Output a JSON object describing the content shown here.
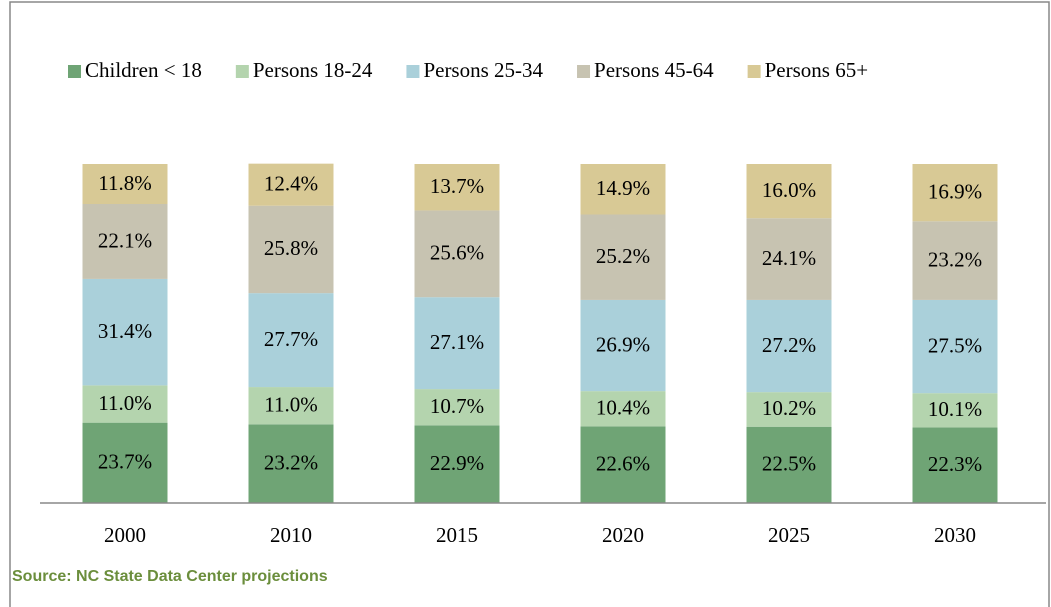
{
  "chart_data": {
    "type": "stacked_bar",
    "categories": [
      "2000",
      "2010",
      "2015",
      "2020",
      "2025",
      "2030"
    ],
    "series": [
      {
        "name": "Children < 18",
        "color": "#6fa475",
        "values": [
          23.7,
          23.2,
          22.9,
          22.6,
          22.5,
          22.3
        ],
        "value_labels": [
          "23.7%",
          "23.2%",
          "22.9%",
          "22.6%",
          "22.5%",
          "22.3%"
        ]
      },
      {
        "name": "Persons 18-24",
        "color": "#b4d4ae",
        "values": [
          11.0,
          11.0,
          10.7,
          10.4,
          10.2,
          10.1
        ],
        "value_labels": [
          "11.0%",
          "11.0%",
          "10.7%",
          "10.4%",
          "10.2%",
          "10.1%"
        ]
      },
      {
        "name": "Persons 25-34",
        "color": "#aad0da",
        "values": [
          31.4,
          27.7,
          27.1,
          26.9,
          27.2,
          27.5
        ],
        "value_labels": [
          "31.4%",
          "27.7%",
          "27.1%",
          "26.9%",
          "27.2%",
          "27.5%"
        ]
      },
      {
        "name": "Persons 45-64",
        "color": "#c7c3b1",
        "values": [
          22.1,
          25.8,
          25.6,
          25.2,
          24.1,
          23.2
        ],
        "value_labels": [
          "22.1%",
          "25.8%",
          "25.6%",
          "25.2%",
          "24.1%",
          "23.2%"
        ]
      },
      {
        "name": "Persons 65+",
        "color": "#d8c995",
        "values": [
          11.8,
          12.4,
          13.7,
          14.9,
          16.0,
          16.9
        ],
        "value_labels": [
          "11.8%",
          "12.4%",
          "13.7%",
          "14.9%",
          "16.0%",
          "16.9%"
        ]
      }
    ],
    "ylim": [
      0,
      100
    ],
    "legend": "top",
    "source": "Source: NC State Data Center projections"
  }
}
